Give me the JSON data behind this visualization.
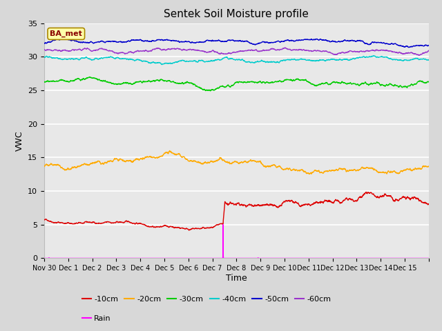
{
  "title": "Sentek Soil Moisture profile",
  "xlabel": "Time",
  "ylabel": "VWC",
  "station_label": "BA_met",
  "ylim": [
    0,
    35
  ],
  "yticks": [
    0,
    5,
    10,
    15,
    20,
    25,
    30,
    35
  ],
  "fig_bg_color": "#d8d8d8",
  "plot_bg_color": "#e8e8e8",
  "series": {
    "-10cm": {
      "color": "#dd0000",
      "base": 5.7,
      "lw": 1.0
    },
    "-20cm": {
      "color": "#ffaa00",
      "base": 13.7,
      "lw": 1.0
    },
    "-30cm": {
      "color": "#00cc00",
      "base": 26.3,
      "lw": 1.0
    },
    "-40cm": {
      "color": "#00cccc",
      "base": 29.9,
      "lw": 1.0
    },
    "-50cm": {
      "color": "#0000cc",
      "base": 32.0,
      "lw": 1.0
    },
    "-60cm": {
      "color": "#9933cc",
      "base": 31.1,
      "lw": 1.0
    }
  },
  "rain_color": "#ff00ff",
  "rain_day": 6.45,
  "rain_peak": 5.0,
  "x_start_day": -1,
  "x_end_day": 15,
  "x_tick_days": [
    -1,
    0,
    1,
    2,
    3,
    4,
    5,
    6,
    7,
    8,
    9,
    10,
    11,
    12,
    13,
    14,
    15
  ],
  "x_tick_labels": [
    "Nov 30",
    "Dec 1",
    "Dec 2",
    "Dec 3",
    "Dec 4",
    "Dec 5",
    "Dec 6",
    "Dec 7",
    "Dec 8",
    "Dec 9",
    "Dec 10",
    "Dec 11",
    "Dec 12",
    "Dec 13",
    "Dec 14",
    "Dec 15",
    ""
  ],
  "legend_row1_labels": [
    "-10cm",
    "-20cm",
    "-30cm",
    "-40cm",
    "-50cm",
    "-60cm"
  ],
  "legend_row1_colors": [
    "#dd0000",
    "#ffaa00",
    "#00cc00",
    "#00cccc",
    "#0000cc",
    "#9933cc"
  ],
  "legend_row2_labels": [
    "Rain"
  ],
  "legend_row2_colors": [
    "#ff00ff"
  ]
}
